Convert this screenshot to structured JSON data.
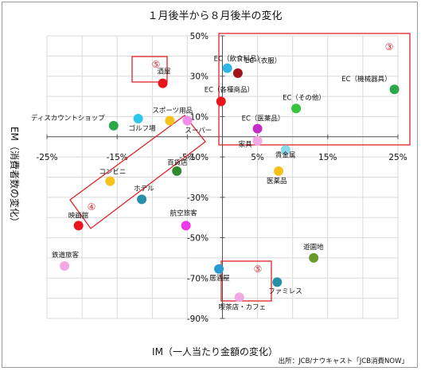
{
  "source": "出所：JCB/ナウキャスト「JCB消費NOW」",
  "chart_data": {
    "type": "scatter",
    "title": "１月後半から８月後半の変化",
    "xlabel": "IM（一人当たり金額の変化）",
    "ylabel": "EM（消費者数の変化）",
    "xlim": [
      -25,
      25
    ],
    "ylim": [
      -90,
      50
    ],
    "x_ticks": [
      -25,
      -15,
      -5,
      5,
      15,
      25
    ],
    "x_tick_labels": [
      "-25%",
      "-15%",
      "-5%",
      "5%",
      "15%",
      "25%"
    ],
    "y_ticks": [
      50,
      30,
      10,
      -10,
      -30,
      -50,
      -70,
      -90
    ],
    "y_tick_labels": [
      "50%",
      "30%",
      "10%",
      "-10%",
      "-30%",
      "-50%",
      "-70%",
      "-90%"
    ],
    "grid": true,
    "points": [
      {
        "label": "EC（飲食料品）",
        "x": 0.7,
        "y": 34,
        "color": "#2eb6e8"
      },
      {
        "label": "EC（衣服）",
        "x": 2.2,
        "y": 31.5,
        "color": "#a01418"
      },
      {
        "label": "EC（機械器具）",
        "x": 24.5,
        "y": 23.5,
        "color": "#2aa84a"
      },
      {
        "label": "EC（各種商品）",
        "x": -0.2,
        "y": 17.5,
        "color": "#e8161c"
      },
      {
        "label": "EC（その他）",
        "x": 10.5,
        "y": 14,
        "color": "#35c43b"
      },
      {
        "label": "EC（医薬品）",
        "x": 5,
        "y": 4,
        "color": "#c12fc4"
      },
      {
        "label": "酒屋",
        "x": -8.5,
        "y": 26.5,
        "color": "#e8161c"
      },
      {
        "label": "ディスカウントショップ",
        "x": -15.5,
        "y": 5.5,
        "color": "#2aa84a"
      },
      {
        "label": "ゴルフ場",
        "x": -12,
        "y": 9,
        "color": "#2ec8ea"
      },
      {
        "label": "スポーツ用品",
        "x": -7.5,
        "y": 8,
        "color": "#f4c21a"
      },
      {
        "label": "スーパー",
        "x": -5,
        "y": 8,
        "color": "#f48ee8"
      },
      {
        "label": "家具",
        "x": 5,
        "y": -2,
        "color": "#f2a8e2"
      },
      {
        "label": "貴金属",
        "x": 9,
        "y": -6.5,
        "color": "#8ad8ee"
      },
      {
        "label": "医薬品",
        "x": 8,
        "y": -17,
        "color": "#f4c21a"
      },
      {
        "label": "百貨店",
        "x": -6.5,
        "y": -17,
        "color": "#2e8b2e"
      },
      {
        "label": "コンビニ",
        "x": -16,
        "y": -22,
        "color": "#f4c21a"
      },
      {
        "label": "ホテル",
        "x": -11.5,
        "y": -31,
        "color": "#2790a8"
      },
      {
        "label": "航空旅客",
        "x": -5.2,
        "y": -44,
        "color": "#ec3ae8"
      },
      {
        "label": "映画館",
        "x": -20.5,
        "y": -44,
        "color": "#e8161c"
      },
      {
        "label": "鉄道旅客",
        "x": -22.5,
        "y": -64,
        "color": "#f2a8e2"
      },
      {
        "label": "遊園地",
        "x": 13,
        "y": -60,
        "color": "#6a9a2e"
      },
      {
        "label": "居酒屋",
        "x": -0.5,
        "y": -65.5,
        "color": "#2a9ad4"
      },
      {
        "label": "ファミレス",
        "x": 7.8,
        "y": -72,
        "color": "#2790a8"
      },
      {
        "label": "喫茶店・カフェ",
        "x": 2.4,
        "y": -79.5,
        "color": "#f2a8e2"
      }
    ],
    "annotations": [
      {
        "mark": "③",
        "color": "#e0242b"
      },
      {
        "mark": "⑤",
        "color": "#e0242b"
      },
      {
        "mark": "④",
        "color": "#e0242b"
      },
      {
        "mark": "⑤",
        "color": "#e0242b"
      }
    ]
  }
}
